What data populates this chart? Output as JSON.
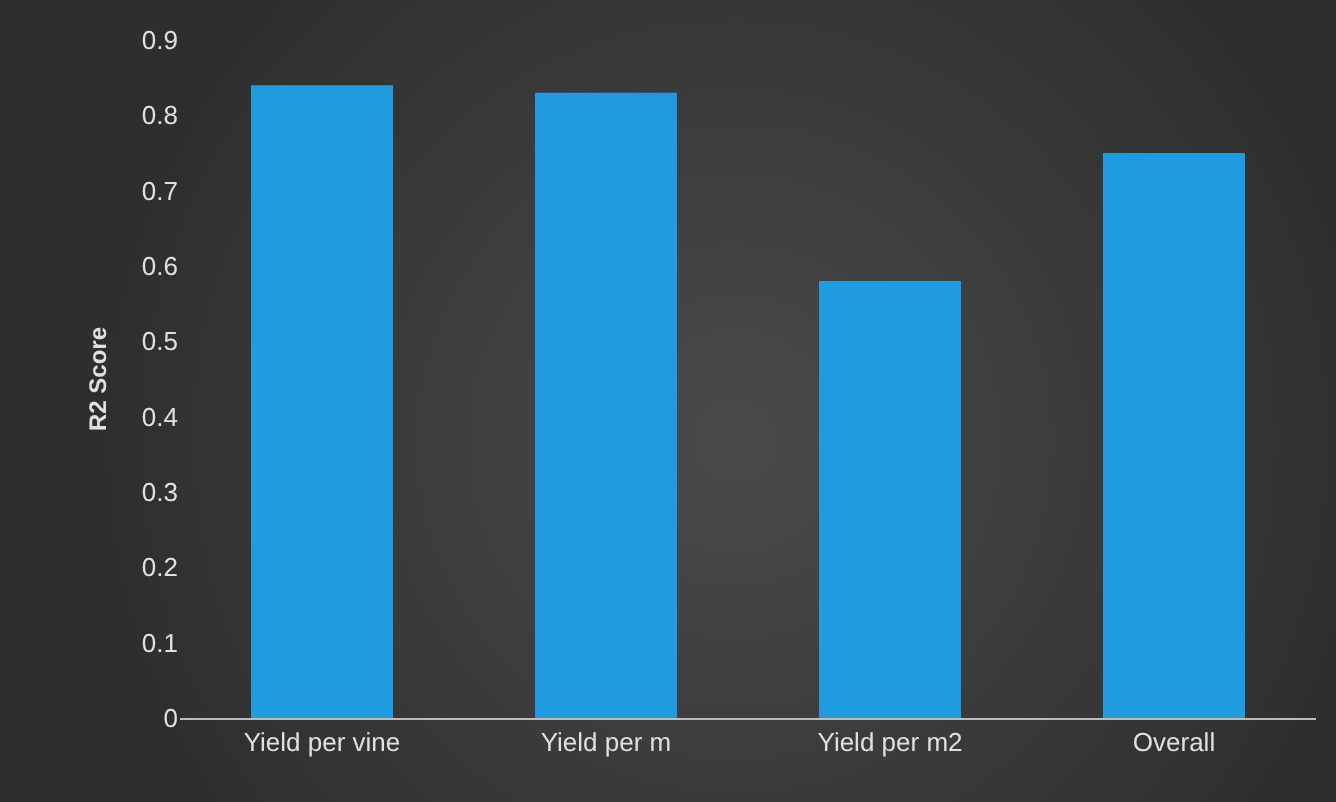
{
  "chart_data": {
    "type": "bar",
    "ylabel": "R2 Score",
    "categories": [
      "Yield per vine",
      "Yield per m",
      "Yield per m2",
      "Overall"
    ],
    "values": [
      0.84,
      0.83,
      0.58,
      0.75
    ],
    "color": "#1f9be0",
    "ylim": [
      0,
      0.9
    ],
    "yticks": [
      0,
      0.1,
      0.2,
      0.3,
      0.4,
      0.5,
      0.6,
      0.7,
      0.8,
      0.9
    ]
  }
}
